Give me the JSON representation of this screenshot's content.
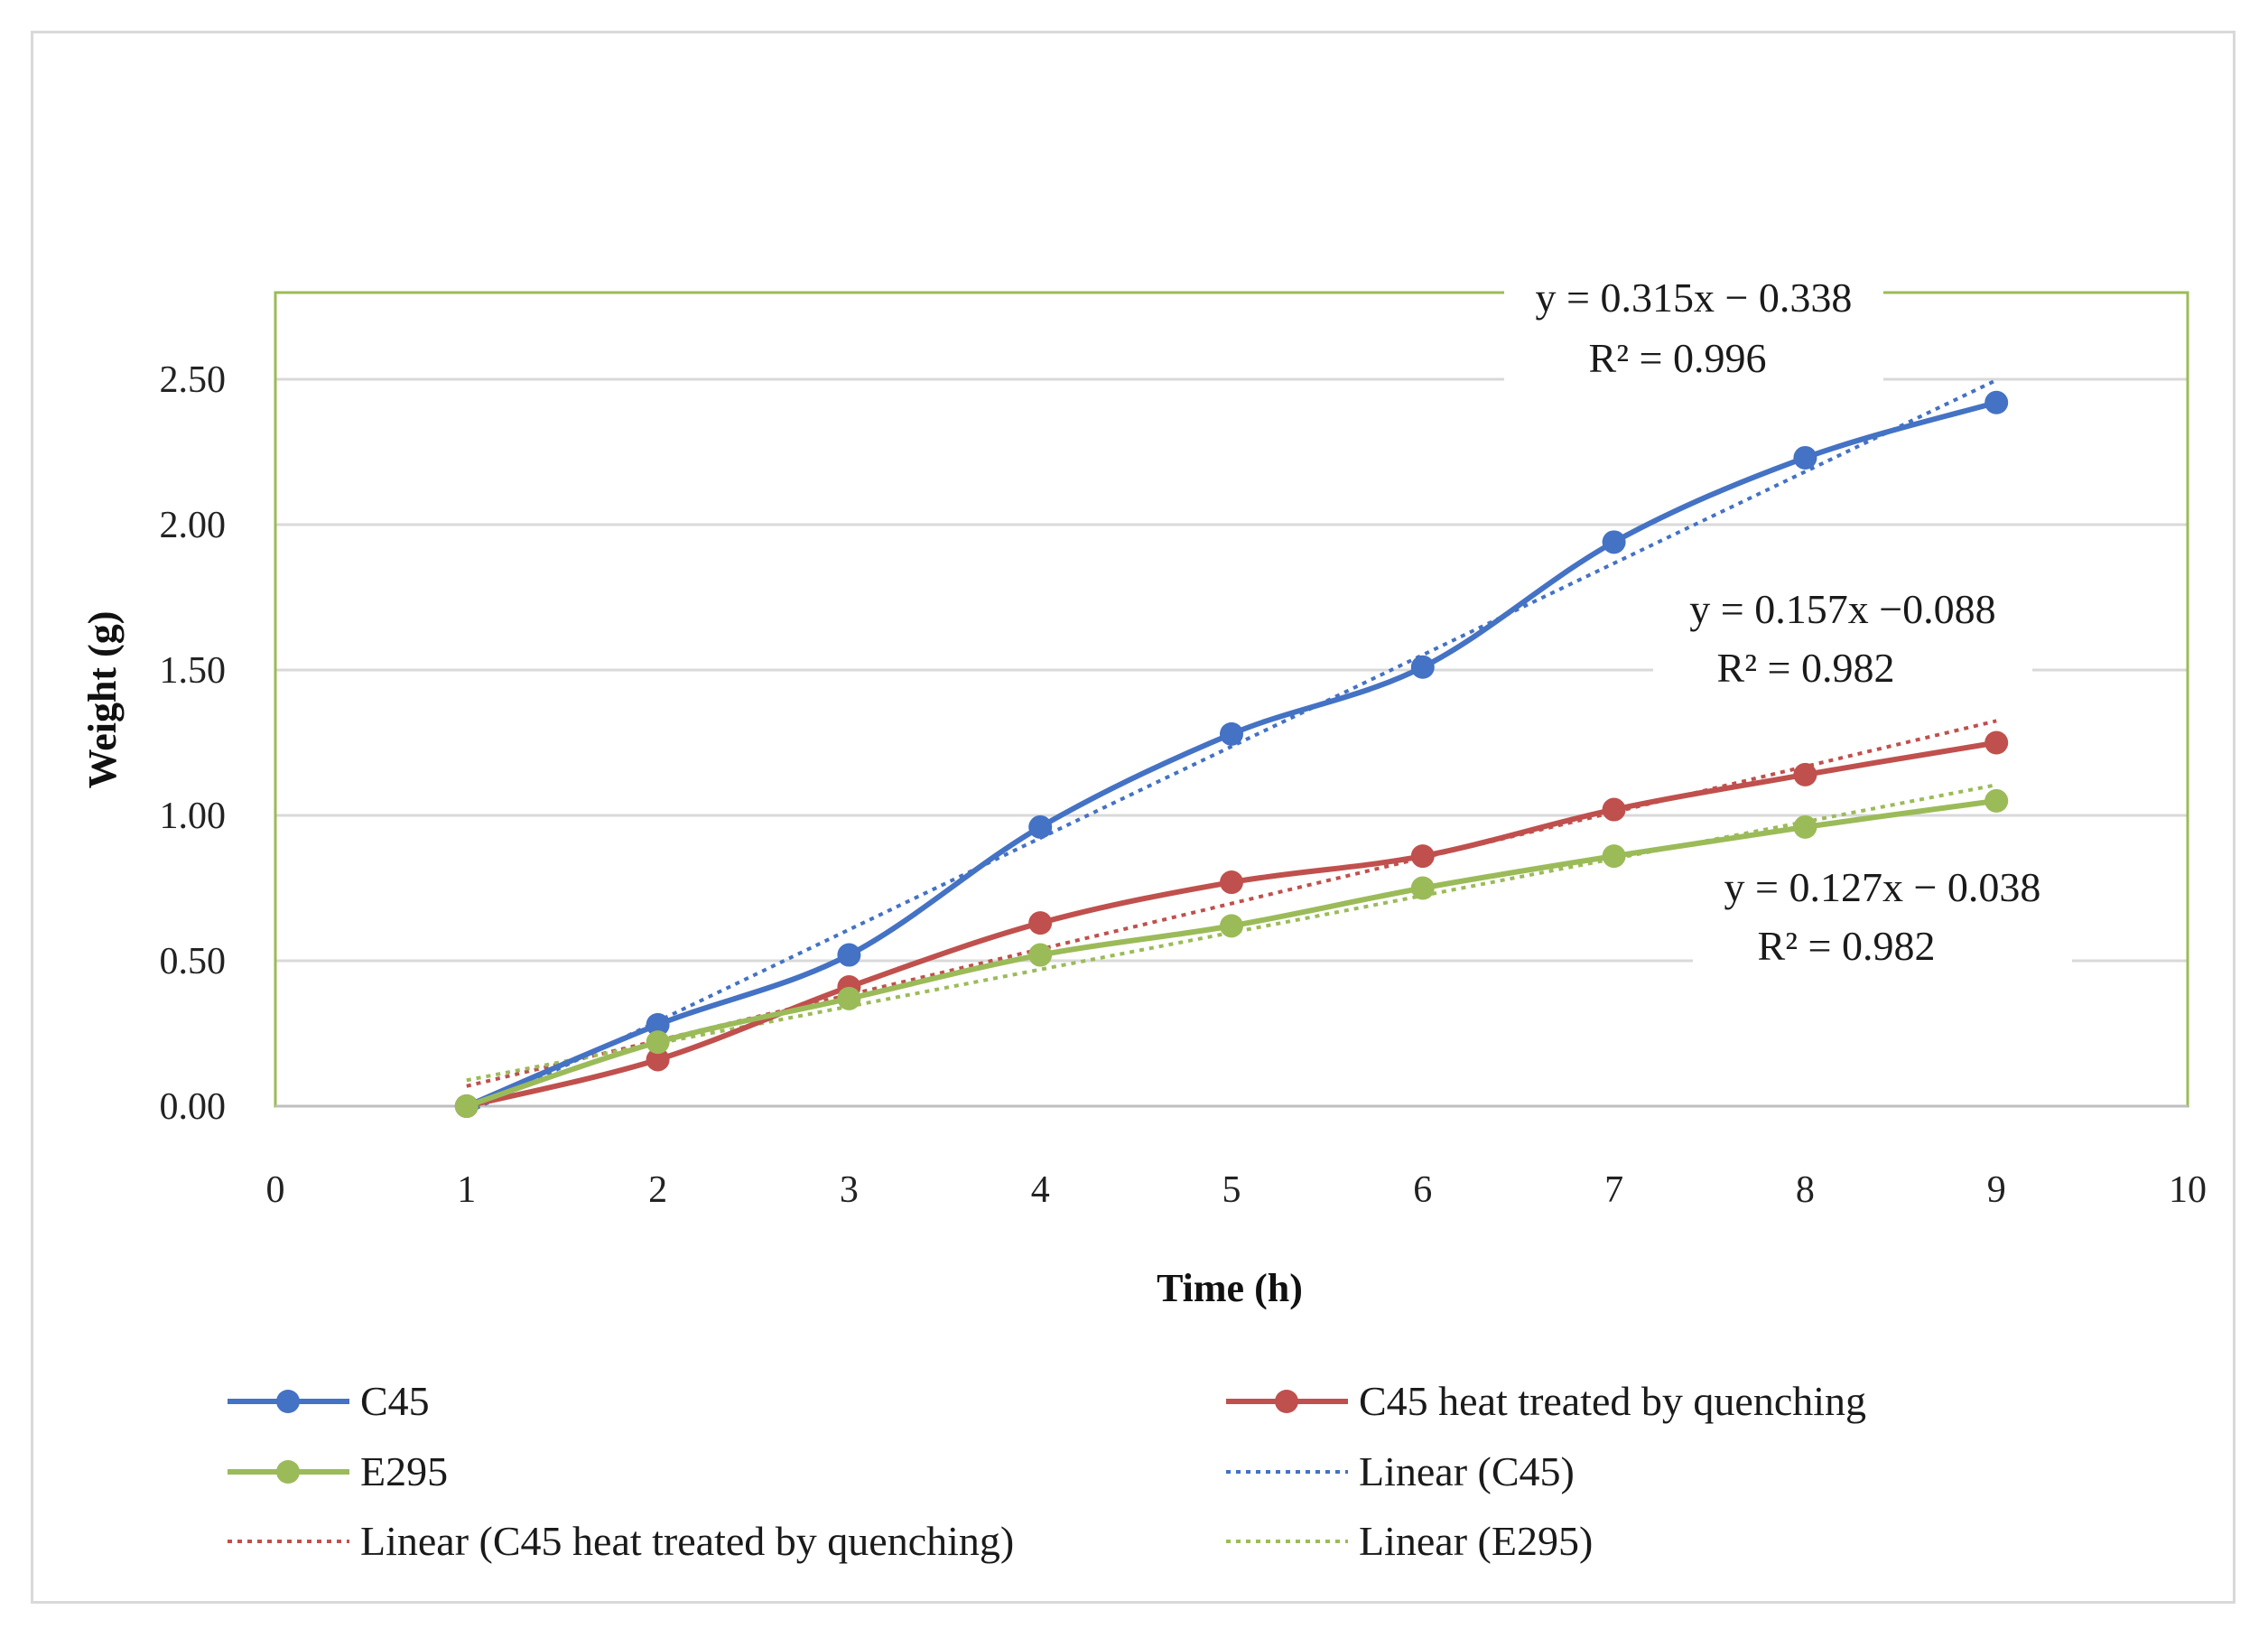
{
  "chart_data": {
    "type": "line",
    "title": "",
    "xlabel": "Time (h)",
    "ylabel": "Weight (g)",
    "xlim": [
      0,
      10
    ],
    "ylim": [
      0,
      2.8
    ],
    "x_ticks": [
      "0",
      "1",
      "2",
      "3",
      "4",
      "5",
      "6",
      "7",
      "8",
      "9",
      "10"
    ],
    "y_ticks": [
      "0.00",
      "0.50",
      "1.00",
      "1.50",
      "2.00",
      "2.50"
    ],
    "x": [
      1,
      2,
      3,
      4,
      5,
      6,
      7,
      8,
      9
    ],
    "series": [
      {
        "name": "C45",
        "color": "#4472c4",
        "values": [
          0.0,
          0.28,
          0.52,
          0.96,
          1.28,
          1.51,
          1.94,
          2.23,
          2.42
        ]
      },
      {
        "name": "C45 heat treated by quenching",
        "color": "#c0504d",
        "values": [
          0.0,
          0.16,
          0.41,
          0.63,
          0.77,
          0.86,
          1.02,
          1.14,
          1.25
        ]
      },
      {
        "name": "E295",
        "color": "#9bbb59",
        "values": [
          0.0,
          0.22,
          0.37,
          0.52,
          0.62,
          0.75,
          0.86,
          0.96,
          1.05
        ]
      }
    ],
    "trendlines": [
      {
        "name": "Linear (C45)",
        "color": "#4472c4",
        "slope": 0.315,
        "intercept": -0.338,
        "equation": "y = 0.315x − 0.338",
        "r2": "R² = 0.996"
      },
      {
        "name": "Linear (C45 heat treated by quenching)",
        "color": "#c0504d",
        "slope": 0.157,
        "intercept": -0.088,
        "equation": "y = 0.157x −0.088",
        "r2": "R² = 0.982"
      },
      {
        "name": "Linear (E295)",
        "color": "#9bbb59",
        "slope": 0.127,
        "intercept": -0.038,
        "equation": "y = 0.127x − 0.038",
        "r2": "R² = 0.982"
      }
    ],
    "legend": [
      "C45",
      "C45 heat treated by quenching",
      "E295",
      "Linear (C45)",
      "Linear (C45 heat treated by quenching)",
      "Linear (E295)"
    ],
    "plot_border_color": "#9bbb59",
    "grid_color": "#d9d9d9"
  }
}
